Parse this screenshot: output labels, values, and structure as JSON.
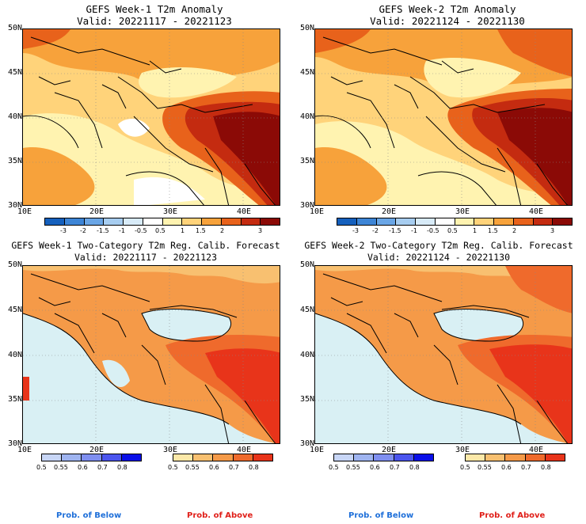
{
  "panels": {
    "p1": {
      "title": "GEFS Week-1 T2m Anomaly",
      "valid": "Valid: 20221117 - 20221123"
    },
    "p2": {
      "title": "GEFS Week-2 T2m Anomaly",
      "valid": "Valid: 20221124 - 20221130"
    },
    "p3": {
      "title": "GEFS Week-1 Two-Category T2m Reg. Calib. Forecast",
      "valid": "Valid: 20221117 - 20221123"
    },
    "p4": {
      "title": "GEFS Week-2 Two-Category T2m Reg. Calib. Forecast",
      "valid": "Valid: 20221124 - 20221130"
    }
  },
  "axes": {
    "lat_labels": [
      "50N",
      "45N",
      "40N",
      "35N",
      "30N"
    ],
    "lon_labels": [
      "10E",
      "20E",
      "30E",
      "40E"
    ]
  },
  "anomaly_colorbar": {
    "ticks": [
      "-3",
      "-2",
      "-1.5",
      "-1",
      "-0.5",
      "0.5",
      "1",
      "1.5",
      "2",
      "3"
    ],
    "colors": [
      "#1560bd",
      "#3d85d6",
      "#6aa6e6",
      "#a7cdf0",
      "#d8ebf8",
      "#ffffff",
      "#fff3b0",
      "#ffd37a",
      "#f7a23b",
      "#e8621b",
      "#c42b10",
      "#8b0a06"
    ]
  },
  "prob_below": {
    "ticks": [
      "0.5",
      "0.55",
      "0.6",
      "0.7",
      "0.8"
    ],
    "colors": [
      "#c8d6f6",
      "#9fb4f0",
      "#7f8ff0",
      "#4b55ee",
      "#0a0fe8"
    ],
    "label": "Prob. of Below",
    "label_color": "#1e6fd9"
  },
  "prob_above": {
    "ticks": [
      "0.5",
      "0.55",
      "0.6",
      "0.7",
      "0.8"
    ],
    "colors": [
      "#fce8a8",
      "#f8c070",
      "#f59a48",
      "#ef6a2c",
      "#e8341a"
    ],
    "label": "Prob. of Above",
    "label_color": "#e0201a"
  }
}
